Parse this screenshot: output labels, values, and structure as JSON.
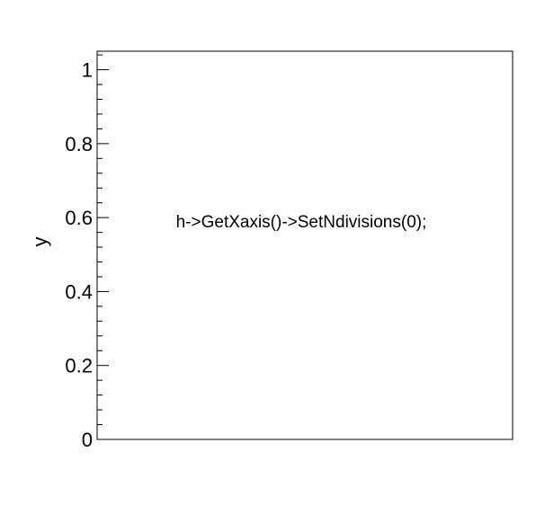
{
  "chart_data": {
    "type": "scatter",
    "title": "",
    "xlabel": "",
    "ylabel": "y",
    "ylim": [
      0,
      1.05
    ],
    "yticks": [
      0,
      0.2,
      0.4,
      0.6,
      0.8,
      1
    ],
    "ytick_labels": [
      "0",
      "0.2",
      "0.4",
      "0.6",
      "0.8",
      "1"
    ],
    "y_minor_per_major": 5,
    "x_divisions": 0,
    "grid": false,
    "series": [],
    "annotations": [
      {
        "text": "h->GetXaxis()->SetNdivisions(0);",
        "x": 0.5,
        "y": 0.56
      }
    ]
  }
}
